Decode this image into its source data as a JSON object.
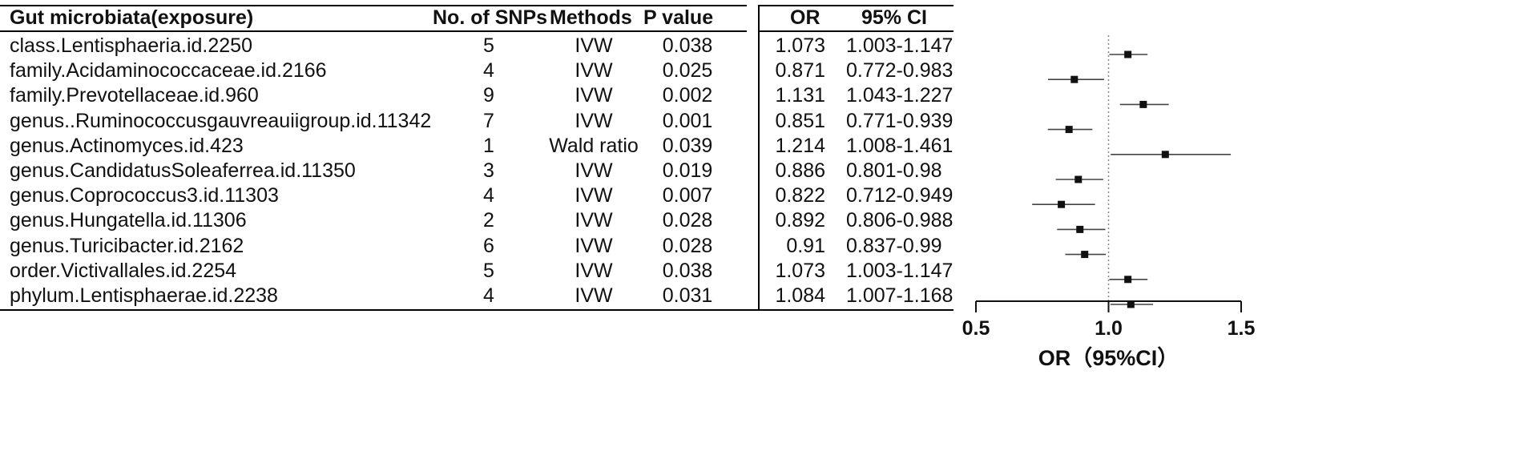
{
  "headers": {
    "exposure": "Gut microbiata(exposure)",
    "snps": "No. of SNPs",
    "methods": "Methods",
    "pvalue": "P value",
    "or": "OR",
    "ci": "95% CI"
  },
  "rows": [
    {
      "exposure": "class.Lentisphaeria.id.2250",
      "snps": "5",
      "method": "IVW",
      "p": "0.038",
      "or": "1.073",
      "ci": "1.003-1.147"
    },
    {
      "exposure": "family.Acidaminococcaceae.id.2166",
      "snps": "4",
      "method": "IVW",
      "p": "0.025",
      "or": "0.871",
      "ci": "0.772-0.983"
    },
    {
      "exposure": "family.Prevotellaceae.id.960",
      "snps": "9",
      "method": "IVW",
      "p": "0.002",
      "or": "1.131",
      "ci": "1.043-1.227"
    },
    {
      "exposure": "genus..Ruminococcusgauvreauiigroup.id.11342",
      "snps": "7",
      "method": "IVW",
      "p": "0.001",
      "or": "0.851",
      "ci": "0.771-0.939"
    },
    {
      "exposure": "genus.Actinomyces.id.423",
      "snps": "1",
      "method": "Wald ratio",
      "p": "0.039",
      "or": "1.214",
      "ci": "1.008-1.461"
    },
    {
      "exposure": "genus.CandidatusSoleaferrea.id.11350",
      "snps": "3",
      "method": "IVW",
      "p": "0.019",
      "or": "0.886",
      "ci": "0.801-0.98"
    },
    {
      "exposure": "genus.Coprococcus3.id.11303",
      "snps": "4",
      "method": "IVW",
      "p": "0.007",
      "or": "0.822",
      "ci": "0.712-0.949"
    },
    {
      "exposure": "genus.Hungatella.id.11306",
      "snps": "2",
      "method": "IVW",
      "p": "0.028",
      "or": "0.892",
      "ci": "0.806-0.988"
    },
    {
      "exposure": "genus.Turicibacter.id.2162",
      "snps": "6",
      "method": "IVW",
      "p": "0.028",
      "or": "0.91",
      "ci": "0.837-0.99"
    },
    {
      "exposure": "order.Victivallales.id.2254",
      "snps": "5",
      "method": "IVW",
      "p": "0.038",
      "or": "1.073",
      "ci": "1.003-1.147"
    },
    {
      "exposure": "phylum.Lentisphaerae.id.2238",
      "snps": "4",
      "method": "IVW",
      "p": "0.031",
      "or": "1.084",
      "ci": "1.007-1.168"
    }
  ],
  "chart_data": {
    "type": "scatter",
    "subtype": "forest",
    "xlabel": "OR（95%CI）",
    "xlim": [
      0.5,
      1.5
    ],
    "xticks": [
      "0.5",
      "1.0",
      "1.5"
    ],
    "reference_line": 1.0,
    "categories": [
      "class.Lentisphaeria.id.2250",
      "family.Acidaminococcaceae.id.2166",
      "family.Prevotellaceae.id.960",
      "genus..Ruminococcusgauvreauiigroup.id.11342",
      "genus.Actinomyces.id.423",
      "genus.CandidatusSoleaferrea.id.11350",
      "genus.Coprococcus3.id.11303",
      "genus.Hungatella.id.11306",
      "genus.Turicibacter.id.2162",
      "order.Victivallales.id.2254",
      "phylum.Lentisphaerae.id.2238"
    ],
    "or": [
      1.073,
      0.871,
      1.131,
      0.851,
      1.214,
      0.886,
      0.822,
      0.892,
      0.91,
      1.073,
      1.084
    ],
    "ci_low": [
      1.003,
      0.772,
      1.043,
      0.771,
      1.008,
      0.801,
      0.712,
      0.806,
      0.837,
      1.003,
      1.007
    ],
    "ci_high": [
      1.147,
      0.983,
      1.227,
      0.939,
      1.461,
      0.98,
      0.949,
      0.988,
      0.99,
      1.147,
      1.168
    ],
    "colors": {
      "marker": "#111111",
      "ref_line": "#888888"
    }
  }
}
